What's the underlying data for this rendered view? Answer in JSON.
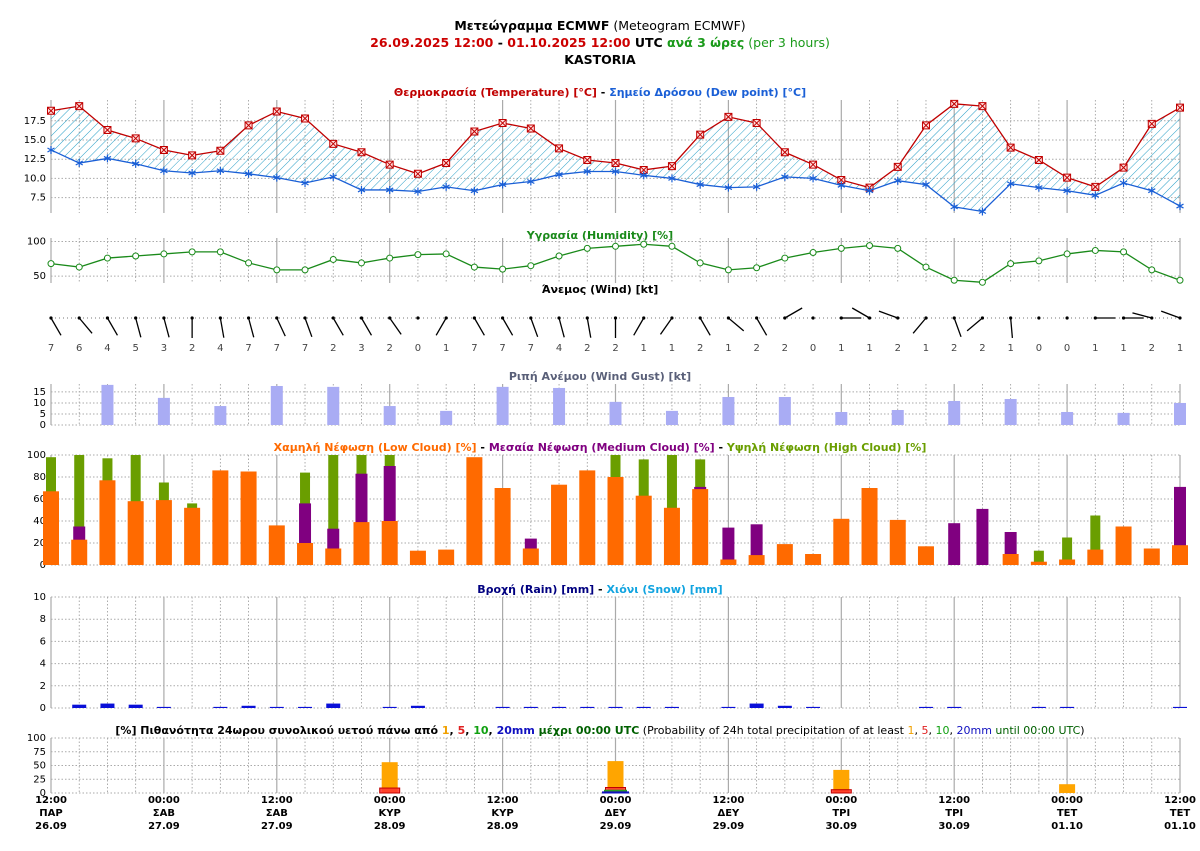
{
  "header": {
    "separator": " - ",
    "lines": [
      [
        {
          "text": "Μετεώγραμμα ECMWF",
          "bold": true
        },
        {
          "text": " (Meteogram ECMWF)"
        }
      ],
      [
        {
          "text": "26.09.2025 12:00",
          "color": "#cc0000",
          "bold": true
        },
        {
          "text": " - ",
          "bold": true
        },
        {
          "text": "01.10.2025 12:00",
          "color": "#cc0000",
          "bold": true
        },
        {
          "text": " UTC",
          "bold": true
        },
        {
          "text": " ανά 3 ώρες",
          "color": "#1a9a1a",
          "bold": true
        },
        {
          "text": " (per 3 hours)",
          "color": "#1a9a1a"
        }
      ],
      [
        {
          "text": "KASTORIA",
          "bold": true
        }
      ]
    ]
  },
  "time_axis": {
    "categories": [
      {
        "time": "12:00",
        "day": "ΠΑΡ",
        "date": "26.09"
      },
      null,
      null,
      null,
      {
        "time": "00:00",
        "day": "ΣΑΒ",
        "date": "27.09"
      },
      null,
      null,
      null,
      {
        "time": "12:00",
        "day": "ΣΑΒ",
        "date": "27.09"
      },
      null,
      null,
      null,
      {
        "time": "00:00",
        "day": "ΚΥΡ",
        "date": "28.09"
      },
      null,
      null,
      null,
      {
        "time": "12:00",
        "day": "ΚΥΡ",
        "date": "28.09"
      },
      null,
      null,
      null,
      {
        "time": "00:00",
        "day": "ΔΕΥ",
        "date": "29.09"
      },
      null,
      null,
      null,
      {
        "time": "12:00",
        "day": "ΔΕΥ",
        "date": "29.09"
      },
      null,
      null,
      null,
      {
        "time": "00:00",
        "day": "ΤΡΙ",
        "date": "30.09"
      },
      null,
      null,
      null,
      {
        "time": "12:00",
        "day": "ΤΡΙ",
        "date": "30.09"
      },
      null,
      null,
      null,
      {
        "time": "00:00",
        "day": "ΤΕΤ",
        "date": "01.10"
      },
      null,
      null,
      null,
      {
        "time": "12:00",
        "day": "ΤΕΤ",
        "date": "01.10"
      }
    ]
  },
  "chart_data": [
    {
      "type": "line",
      "ylim": [
        5.5,
        20.2
      ],
      "yticks": [
        7.5,
        {
          "value": 10,
          "label": "10.0"
        },
        12.5,
        {
          "value": 15,
          "label": "15.0"
        },
        17.5
      ],
      "grid": true,
      "fill_between": true,
      "series": [
        {
          "name": "Θερμοκρασία (Temperature) [°C]",
          "color": "#c00000",
          "marker": "square",
          "values": [
            18.8,
            19.4,
            16.3,
            15.2,
            13.7,
            13.0,
            13.6,
            16.9,
            18.7,
            17.8,
            14.5,
            13.4,
            11.8,
            10.6,
            12.0,
            16.1,
            17.2,
            16.5,
            13.9,
            12.4,
            12.0,
            11.1,
            11.6,
            15.7,
            18.0,
            17.2,
            13.4,
            11.8,
            9.8,
            8.8,
            11.5,
            16.9,
            19.7,
            19.4,
            14.0,
            12.4,
            10.1,
            8.9,
            11.4,
            17.1,
            19.2
          ]
        },
        {
          "name": "Σημείο Δρόσου (Dew point) [°C]",
          "color": "#1a5fd6",
          "marker": "asterisk",
          "values": [
            13.7,
            12.0,
            12.6,
            11.9,
            11.0,
            10.7,
            11.0,
            10.6,
            10.1,
            9.4,
            10.2,
            8.5,
            8.5,
            8.3,
            8.9,
            8.4,
            9.2,
            9.6,
            10.5,
            10.9,
            10.9,
            10.4,
            10.0,
            9.2,
            8.8,
            8.9,
            10.2,
            10.0,
            9.1,
            8.4,
            9.7,
            9.2,
            6.3,
            5.7,
            9.3,
            8.8,
            8.4,
            7.8,
            9.4,
            8.4,
            6.4
          ]
        }
      ]
    },
    {
      "type": "line",
      "ylim": [
        40,
        105
      ],
      "yticks": [
        50,
        100
      ],
      "grid": true,
      "series": [
        {
          "name": "Υγρασία (Humidity) [%]",
          "color": "#1a8a1a",
          "marker": "circle",
          "values": [
            68,
            63,
            76,
            79,
            82,
            85,
            85,
            69,
            59,
            59,
            74,
            69,
            76,
            81,
            82,
            63,
            60,
            65,
            79,
            90,
            93,
            96,
            93,
            69,
            59,
            62,
            76,
            84,
            90,
            94,
            90,
            63,
            44,
            41,
            68,
            72,
            82,
            87,
            85,
            59,
            44
          ]
        }
      ]
    },
    {
      "type": "wind",
      "title": "Άνεμος (Wind) [kt]",
      "title_color": "#000000",
      "values": [
        7,
        6,
        4,
        5,
        3,
        2,
        4,
        7,
        7,
        7,
        2,
        3,
        2,
        0,
        1,
        7,
        7,
        7,
        4,
        2,
        2,
        1,
        1,
        2,
        1,
        2,
        2,
        0,
        1,
        1,
        2,
        1,
        2,
        2,
        1,
        0,
        0,
        1,
        1,
        2,
        1
      ],
      "directions": [
        150,
        140,
        150,
        165,
        165,
        180,
        170,
        165,
        155,
        160,
        150,
        150,
        145,
        180,
        210,
        150,
        150,
        160,
        165,
        170,
        180,
        210,
        215,
        150,
        130,
        150,
        60,
        90,
        90,
        300,
        290,
        220,
        160,
        230,
        175,
        90,
        90,
        90,
        90,
        285,
        290
      ]
    },
    {
      "type": "bar",
      "ylim": [
        0,
        18.6
      ],
      "yticks": [
        0,
        5,
        10,
        15
      ],
      "grid": true,
      "series": [
        {
          "name": "Ριπή Ανέμου (Wind Gust) [kt]",
          "color": "#a9acf4",
          "title_color": "#5a6079",
          "values": [
            null,
            null,
            18.2,
            null,
            12.3,
            null,
            8.6,
            null,
            17.7,
            null,
            17.3,
            null,
            8.6,
            null,
            6.4,
            null,
            17.3,
            null,
            16.8,
            null,
            10.5,
            null,
            6.4,
            null,
            12.7,
            null,
            12.7,
            null,
            5.9,
            null,
            6.8,
            null,
            10.9,
            null,
            11.8,
            null,
            5.9,
            null,
            5.5,
            null,
            10.0
          ]
        }
      ]
    },
    {
      "type": "bar",
      "ylim": [
        0,
        100
      ],
      "yticks": [
        0,
        20,
        40,
        60,
        80,
        100
      ],
      "grid": true,
      "draw_order": [
        2,
        1,
        0
      ],
      "series": [
        {
          "name": "Χαμηλή Νέφωση (Low Cloud) [%]",
          "color": "#ff6a00",
          "values": [
            67,
            23,
            77,
            58,
            59,
            52,
            86,
            85,
            36,
            20,
            15,
            39,
            40,
            13,
            14,
            98,
            70,
            15,
            73,
            86,
            80,
            63,
            52,
            69,
            5,
            9,
            19,
            10,
            42,
            70,
            41,
            17,
            0,
            0,
            10,
            3,
            5,
            14,
            35,
            15,
            18
          ]
        },
        {
          "name": "Μεσαία Νέφωση (Medium Cloud) [%]",
          "color": "#800080",
          "values": [
            0,
            35,
            0,
            0,
            0,
            0,
            0,
            0,
            0,
            56,
            33,
            83,
            90,
            0,
            0,
            0,
            0,
            24,
            0,
            0,
            0,
            0,
            0,
            71,
            34,
            37,
            0,
            0,
            0,
            0,
            0,
            0,
            38,
            51,
            30,
            0,
            0,
            0,
            0,
            0,
            71
          ]
        },
        {
          "name": "Υψηλή Νέφωση (High Cloud) [%]",
          "color": "#6a9e00",
          "values": [
            98,
            100,
            97,
            100,
            75,
            56,
            0,
            0,
            0,
            84,
            100,
            100,
            100,
            0,
            0,
            0,
            0,
            0,
            0,
            0,
            100,
            96,
            100,
            96,
            0,
            0,
            0,
            0,
            0,
            0,
            0,
            0,
            0,
            0,
            0,
            13,
            25,
            45,
            0,
            0,
            0
          ]
        }
      ]
    },
    {
      "type": "bar",
      "ylim": [
        0,
        10
      ],
      "yticks": [
        0,
        2,
        4,
        6,
        8,
        10
      ],
      "grid": true,
      "series": [
        {
          "name": "Βροχή (Rain) [mm]",
          "color": "#0a10d8",
          "title_color": "#000080",
          "values": [
            0,
            0.3,
            0.4,
            0.3,
            0.1,
            0,
            0.1,
            0.2,
            0.1,
            0.1,
            0.4,
            0,
            0.1,
            0.2,
            0,
            0,
            0.1,
            0.1,
            0.1,
            0.1,
            0.1,
            0.1,
            0.1,
            0,
            0.1,
            0.4,
            0.2,
            0.1,
            0,
            0,
            0,
            0.1,
            0.1,
            0,
            0,
            0.1,
            0.1,
            0,
            0,
            0,
            0.1
          ]
        },
        {
          "name": "Χιόνι (Snow) [mm]",
          "color": "#12a4e0",
          "values": [
            0,
            0,
            0,
            0,
            0,
            0,
            0,
            0,
            0,
            0,
            0,
            0,
            0,
            0,
            0,
            0,
            0,
            0,
            0,
            0,
            0,
            0,
            0,
            0,
            0,
            0,
            0,
            0,
            0,
            0,
            0,
            0,
            0,
            0,
            0,
            0,
            0,
            0,
            0,
            0,
            0
          ]
        }
      ]
    },
    {
      "type": "bar",
      "ylim": [
        0,
        100
      ],
      "yticks": [
        0,
        25,
        50,
        75,
        100
      ],
      "grid": true,
      "title_parts": [
        {
          "text": "[%] Πιθανότητα 24ωρου συνολικού υετού πάνω από ",
          "bold": true
        },
        {
          "text": "1",
          "color": "#f0a000",
          "bold": true
        },
        {
          "text": ", ",
          "bold": true
        },
        {
          "text": "5",
          "color": "#e02020",
          "bold": true
        },
        {
          "text": ", ",
          "bold": true
        },
        {
          "text": "10",
          "color": "#10a010",
          "bold": true
        },
        {
          "text": ", ",
          "bold": true
        },
        {
          "text": "20mm",
          "color": "#1010c0",
          "bold": true
        },
        {
          "text": " μέχρι 00:00 UTC",
          "color": "#006000",
          "bold": true
        },
        {
          "text": " (Probability of 24h total precipitation of at least "
        },
        {
          "text": "1",
          "color": "#f0a000"
        },
        {
          "text": ", "
        },
        {
          "text": "5",
          "color": "#e02020"
        },
        {
          "text": ", "
        },
        {
          "text": "10",
          "color": "#10a010"
        },
        {
          "text": ", "
        },
        {
          "text": "20mm",
          "color": "#1010c0"
        },
        {
          "text": " until 00:00 UTC",
          "color": "#006000"
        },
        {
          "text": ")"
        }
      ],
      "series": [
        {
          "color": "#ffa500",
          "values": [
            null,
            null,
            null,
            null,
            null,
            null,
            null,
            null,
            null,
            null,
            null,
            null,
            56,
            null,
            null,
            null,
            null,
            null,
            null,
            null,
            58,
            null,
            null,
            null,
            null,
            null,
            null,
            null,
            42,
            null,
            null,
            null,
            null,
            null,
            null,
            null,
            16,
            null,
            null,
            null,
            null
          ]
        },
        {
          "color": "#ff3030",
          "values": [
            null,
            null,
            null,
            null,
            null,
            null,
            null,
            null,
            null,
            null,
            null,
            null,
            9,
            null,
            null,
            null,
            null,
            null,
            null,
            null,
            10,
            null,
            null,
            null,
            null,
            null,
            null,
            null,
            6,
            null,
            null,
            null,
            null,
            null,
            null,
            null,
            0,
            null,
            null,
            null,
            null
          ]
        },
        {
          "color": "#20a020",
          "values": [
            null,
            null,
            null,
            null,
            null,
            null,
            null,
            null,
            null,
            null,
            null,
            null,
            0,
            null,
            null,
            null,
            null,
            null,
            null,
            null,
            5,
            null,
            null,
            null,
            null,
            null,
            null,
            null,
            0,
            null,
            null,
            null,
            null,
            null,
            null,
            null,
            0,
            null,
            null,
            null,
            null
          ]
        },
        {
          "color": "#1010c0",
          "values": [
            null,
            null,
            null,
            null,
            null,
            null,
            null,
            null,
            null,
            null,
            null,
            null,
            0,
            null,
            null,
            null,
            null,
            null,
            null,
            null,
            2,
            null,
            null,
            null,
            null,
            null,
            null,
            null,
            0,
            null,
            null,
            null,
            null,
            null,
            null,
            null,
            0,
            null,
            null,
            null,
            null
          ]
        }
      ]
    }
  ]
}
